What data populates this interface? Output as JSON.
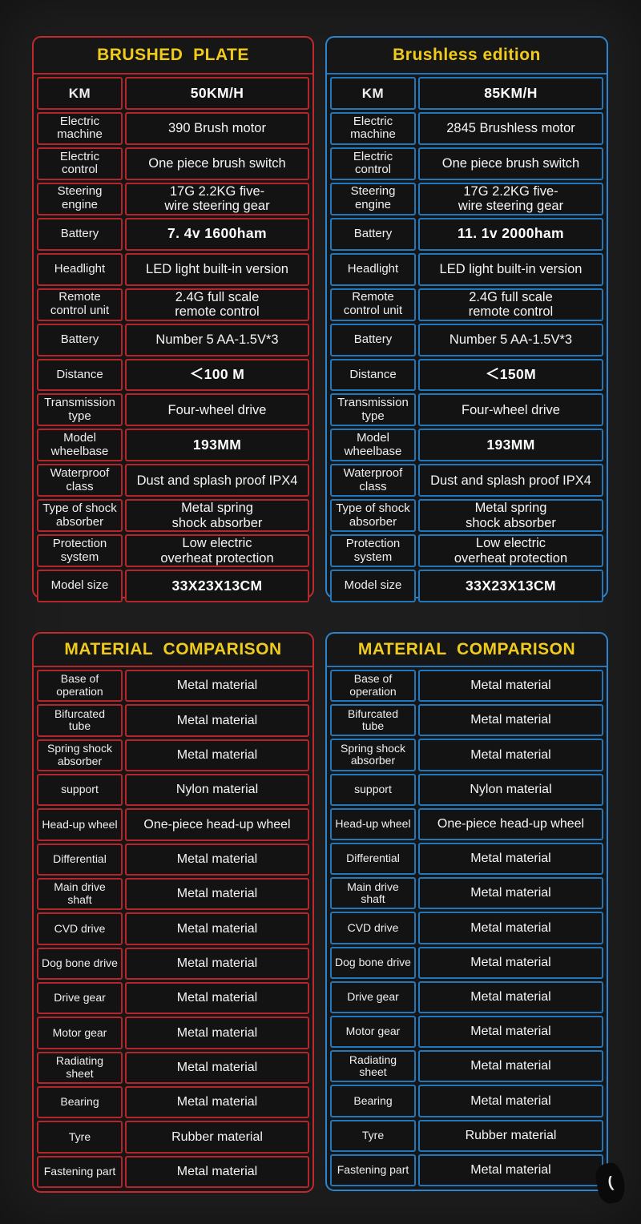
{
  "theme": {
    "background": "#1d1d1d",
    "red_accent": "#b3262b",
    "blue_accent": "#2476ba",
    "title_yellow": "#f0cb1c",
    "cell_background": "#131313",
    "text_color": "#f2f2f2"
  },
  "tables": {
    "brushed": {
      "title": "BRUSHED  PLATE",
      "rows": [
        {
          "label": "KM",
          "value": "50KM/H",
          "label_em": true,
          "em": true
        },
        {
          "label": "Electric\nmachine",
          "value": "390 Brush motor"
        },
        {
          "label": "Electric\ncontrol",
          "value": "One piece brush switch"
        },
        {
          "label": "Steering\nengine",
          "value": "17G 2.2KG five-\nwire steering gear"
        },
        {
          "label": "Battery",
          "value": "7. 4v  1600ham",
          "em": true
        },
        {
          "label": "Headlight",
          "value": "LED light built-in version"
        },
        {
          "label": "Remote\ncontrol unit",
          "value": "2.4G full scale\nremote control"
        },
        {
          "label": "Battery",
          "value": "Number 5 AA-1.5V*3"
        },
        {
          "label": "Distance",
          "value": "＜100 M",
          "em": true
        },
        {
          "label": "Transmission\ntype",
          "value": "Four-wheel drive"
        },
        {
          "label": "Model\nwheelbase",
          "value": "193MM",
          "em": true
        },
        {
          "label": "Waterproof\nclass",
          "value": "Dust and splash proof IPX4"
        },
        {
          "label": "Type of shock\nabsorber",
          "value": "Metal spring\nshock absorber"
        },
        {
          "label": "Protection\nsystem",
          "value": "Low electric\noverheat protection"
        },
        {
          "label": "Model size",
          "value": "33X23X13CM",
          "em": true
        }
      ]
    },
    "brushless": {
      "title": "Brushless edition",
      "rows": [
        {
          "label": "KM",
          "value": "85KM/H",
          "label_em": true,
          "em": true
        },
        {
          "label": "Electric\nmachine",
          "value": "2845 Brushless motor"
        },
        {
          "label": "Electric\ncontrol",
          "value": "One piece brush switch"
        },
        {
          "label": "Steering\nengine",
          "value": "17G 2.2KG five-\nwire steering gear"
        },
        {
          "label": "Battery",
          "value": "11. 1v  2000ham",
          "em": true
        },
        {
          "label": "Headlight",
          "value": "LED light built-in version"
        },
        {
          "label": "Remote\ncontrol unit",
          "value": "2.4G full scale\nremote control"
        },
        {
          "label": "Battery",
          "value": "Number 5 AA-1.5V*3"
        },
        {
          "label": "Distance",
          "value": "＜150M",
          "em": true
        },
        {
          "label": "Transmission\ntype",
          "value": "Four-wheel drive"
        },
        {
          "label": "Model\nwheelbase",
          "value": "193MM",
          "em": true
        },
        {
          "label": "Waterproof\nclass",
          "value": "Dust and splash proof IPX4"
        },
        {
          "label": "Type of shock\nabsorber",
          "value": "Metal spring\nshock absorber"
        },
        {
          "label": "Protection\nsystem",
          "value": "Low electric\noverheat protection"
        },
        {
          "label": "Model size",
          "value": "33X23X13CM",
          "em": true
        }
      ]
    },
    "material_left": {
      "title": "MATERIAL  COMPARISON",
      "rows": [
        {
          "label": "Base of\noperation",
          "value": "Metal material"
        },
        {
          "label": "Bifurcated\ntube",
          "value": "Metal material"
        },
        {
          "label": "Spring shock\nabsorber",
          "value": "Metal material"
        },
        {
          "label": "support",
          "value": "Nylon material"
        },
        {
          "label": "Head-up wheel",
          "value": "One-piece head-up wheel"
        },
        {
          "label": "Differential",
          "value": "Metal material"
        },
        {
          "label": "Main drive shaft",
          "value": "Metal material"
        },
        {
          "label": "CVD drive",
          "value": "Metal material"
        },
        {
          "label": "Dog bone drive",
          "value": "Metal material"
        },
        {
          "label": "Drive gear",
          "value": "Metal material"
        },
        {
          "label": "Motor gear",
          "value": "Metal material"
        },
        {
          "label": "Radiating sheet",
          "value": "Metal material"
        },
        {
          "label": "Bearing",
          "value": "Metal material"
        },
        {
          "label": "Tyre",
          "value": "Rubber material"
        },
        {
          "label": "Fastening part",
          "value": "Metal material"
        }
      ]
    },
    "material_right": {
      "title": "MATERIAL  COMPARISON",
      "rows": [
        {
          "label": "Base of\noperation",
          "value": "Metal material"
        },
        {
          "label": "Bifurcated\ntube",
          "value": "Metal material"
        },
        {
          "label": "Spring shock\nabsorber",
          "value": "Metal material"
        },
        {
          "label": "support",
          "value": "Nylon material"
        },
        {
          "label": "Head-up wheel",
          "value": "One-piece head-up wheel"
        },
        {
          "label": "Differential",
          "value": "Metal material"
        },
        {
          "label": "Main drive shaft",
          "value": "Metal material"
        },
        {
          "label": "CVD drive",
          "value": "Metal material"
        },
        {
          "label": "Dog bone drive",
          "value": "Metal material"
        },
        {
          "label": "Drive gear",
          "value": "Metal material"
        },
        {
          "label": "Motor gear",
          "value": "Metal material"
        },
        {
          "label": "Radiating sheet",
          "value": "Metal material"
        },
        {
          "label": "Bearing",
          "value": "Metal material"
        },
        {
          "label": "Tyre",
          "value": "Rubber material"
        },
        {
          "label": "Fastening part",
          "value": "Metal material"
        }
      ]
    }
  },
  "artifact": {
    "glyph": "("
  }
}
